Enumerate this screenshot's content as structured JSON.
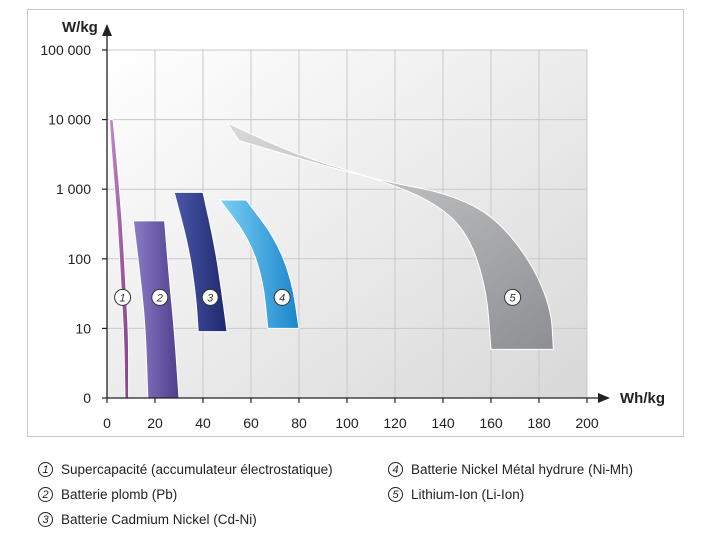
{
  "chart_data": {
    "type": "area",
    "xlabel": "Wh/kg",
    "ylabel": "W/kg",
    "x_ticks": [
      0,
      20,
      40,
      60,
      80,
      100,
      120,
      140,
      160,
      180,
      200
    ],
    "y_ticks": [
      "0",
      "10",
      "100",
      "1 000",
      "10 000",
      "100 000"
    ],
    "xlim": [
      0,
      200
    ],
    "ylim": [
      0,
      100000
    ],
    "y_scale": "log",
    "grid": true,
    "legend_position": "bottom",
    "series": [
      {
        "name": "Supercapacité (accumulateur électrostatique)",
        "label": "1",
        "color": "#9b4f9c",
        "energy_range_whkg": [
          1,
          8
        ],
        "power_range_wkg": [
          0,
          10000
        ]
      },
      {
        "name": "Batterie plomb (Pb)",
        "label": "2",
        "color": "#6a5aa8",
        "energy_range_whkg": [
          17,
          30
        ],
        "power_range_wkg": [
          0,
          350
        ]
      },
      {
        "name": "Batterie Cadmium Nickel (Cd-Ni)",
        "label": "3",
        "color": "#2f3a8a",
        "energy_range_whkg": [
          28,
          50
        ],
        "power_range_wkg": [
          9,
          900
        ]
      },
      {
        "name": "Batterie Nickel Métal hydrure (Ni-Mh)",
        "label": "4",
        "color": "#2a9ad8",
        "energy_range_whkg": [
          47,
          80
        ],
        "power_range_wkg": [
          10,
          700
        ]
      },
      {
        "name": "Lithium-Ion (Li-Ion)",
        "label": "5",
        "color": "#a6a8aa",
        "energy_range_whkg": [
          50,
          186
        ],
        "power_range_wkg": [
          5,
          9000
        ]
      }
    ]
  },
  "legend": [
    {
      "num": "1",
      "text": "Supercapacité (accumulateur électrostatique)"
    },
    {
      "num": "2",
      "text": "Batterie plomb (Pb)"
    },
    {
      "num": "3",
      "text": "Batterie Cadmium Nickel (Cd-Ni)"
    },
    {
      "num": "4",
      "text": "Batterie Nickel Métal hydrure (Ni-Mh)"
    },
    {
      "num": "5",
      "text": "Lithium-Ion (Li-Ion)"
    }
  ]
}
